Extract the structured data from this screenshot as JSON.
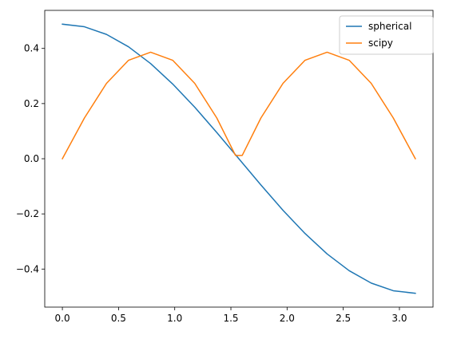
{
  "chart_data": {
    "type": "line",
    "title": "",
    "xlabel": "",
    "ylabel": "",
    "xlim": [
      -0.157,
      3.299
    ],
    "ylim": [
      -0.538,
      0.538
    ],
    "x_ticks": [
      0.0,
      0.5,
      1.0,
      1.5,
      2.0,
      2.5,
      3.0
    ],
    "x_tick_labels": [
      "0.0",
      "0.5",
      "1.0",
      "1.5",
      "2.0",
      "2.5",
      "3.0"
    ],
    "y_ticks": [
      -0.4,
      -0.2,
      0.0,
      0.2,
      0.4
    ],
    "y_tick_labels": [
      "−0.4",
      "−0.2",
      "0.0",
      "0.2",
      "0.4"
    ],
    "grid": false,
    "legend_position": "top-right",
    "series": [
      {
        "name": "spherical",
        "color": "#1f77b4",
        "x": [
          0.0,
          0.1963,
          0.3927,
          0.589,
          0.7854,
          0.9817,
          1.1781,
          1.3744,
          1.5708,
          1.7671,
          1.9635,
          2.1598,
          2.3562,
          2.5525,
          2.7489,
          2.9452,
          3.1416
        ],
        "values": [
          0.488,
          0.4786,
          0.4509,
          0.4058,
          0.3451,
          0.2711,
          0.1868,
          0.0952,
          0.0,
          -0.0952,
          -0.1868,
          -0.2711,
          -0.3451,
          -0.4058,
          -0.4509,
          -0.4786,
          -0.488
        ]
      },
      {
        "name": "scipy",
        "color": "#ff7f0e",
        "x": [
          0.0,
          0.1963,
          0.3927,
          0.589,
          0.7854,
          0.9817,
          1.1781,
          1.3744,
          1.5408,
          1.6008,
          1.7671,
          1.9635,
          2.1598,
          2.3562,
          2.5525,
          2.7489,
          2.9452,
          3.1416
        ],
        "values": [
          0.0,
          0.1479,
          0.2733,
          0.3571,
          0.3862,
          0.3571,
          0.2733,
          0.1479,
          0.012,
          0.012,
          0.1479,
          0.2733,
          0.3571,
          0.3862,
          0.3571,
          0.2733,
          0.1479,
          0.0
        ]
      }
    ]
  }
}
